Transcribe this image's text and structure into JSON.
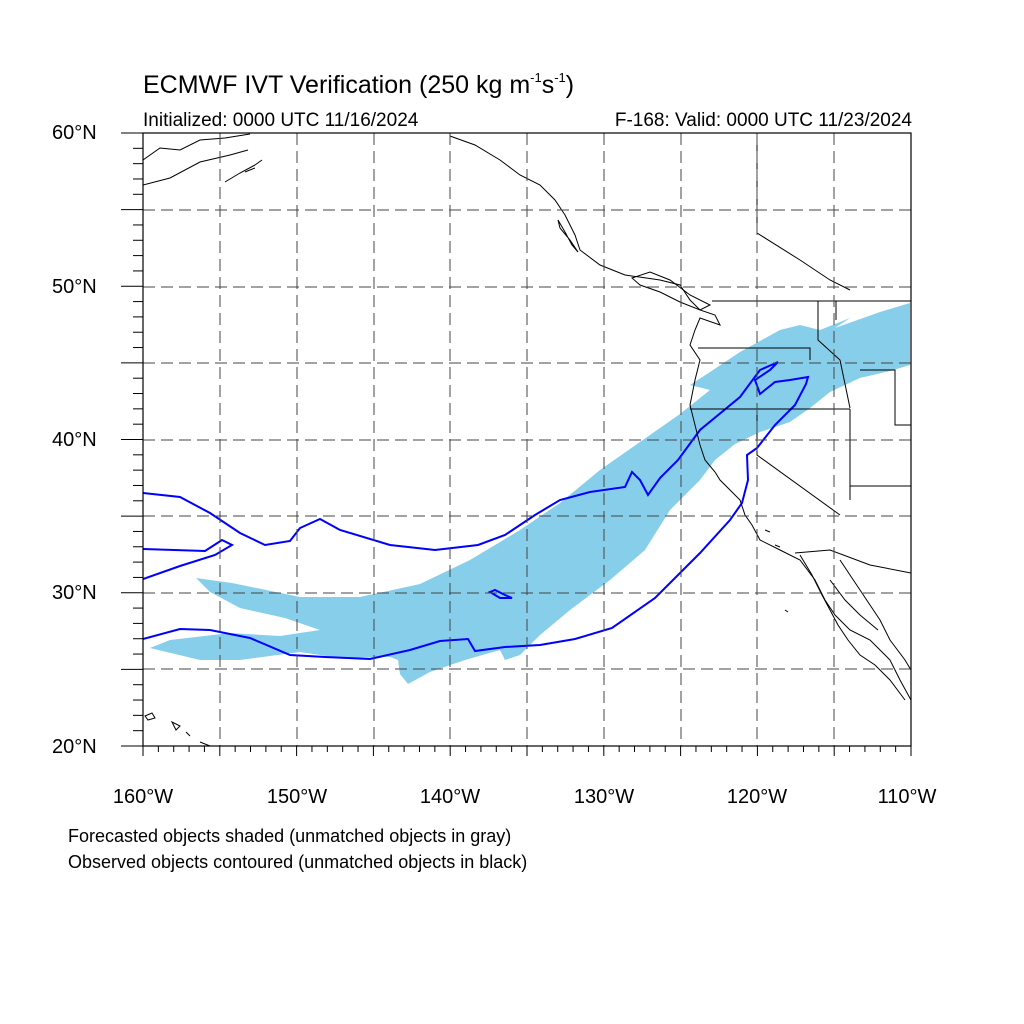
{
  "title": {
    "text": "ECMWF IVT Verification (250 kg m",
    "sup1": "-1",
    "mid": "s",
    "sup2": "-1",
    "end": ")"
  },
  "initialized": "Initialized: 0000 UTC 11/16/2024",
  "valid": "F-168: Valid: 0000 UTC 11/23/2024",
  "notes": {
    "forecast": "Forecasted objects shaded (unmatched objects in gray)",
    "observed": "Observed objects contoured (unmatched objects in black)"
  },
  "axes": {
    "lon_labels": [
      "160°W",
      "150°W",
      "140°W",
      "130°W",
      "120°W",
      "110°W"
    ],
    "lat_labels": [
      "60°N",
      "50°N",
      "40°N",
      "30°N",
      "20°N"
    ],
    "lon_range": [
      -160,
      -110
    ],
    "lat_range": [
      20,
      60
    ],
    "grid_spacing_deg": 5,
    "grid_style": "dashed"
  },
  "colors": {
    "forecast_fill": "#87ceeb",
    "observed_contour": "#0000ff",
    "coastline": "#000000",
    "grid": "#444444"
  }
}
